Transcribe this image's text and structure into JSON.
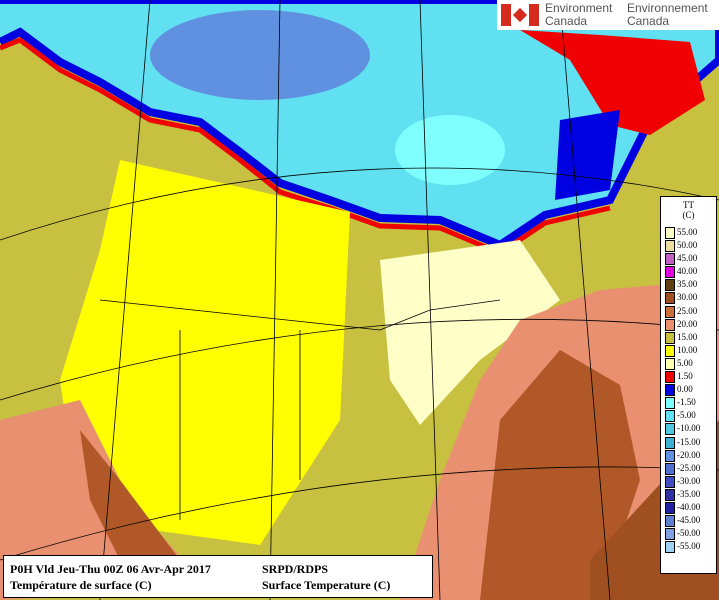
{
  "header": {
    "org_en_1": "Environment",
    "org_en_2": "Canada",
    "org_fr_1": "Environnement",
    "org_fr_2": "Canada"
  },
  "legend": {
    "title": "TT",
    "unit": "(C)",
    "items": [
      {
        "label": "55.00",
        "color": "#ffffc8"
      },
      {
        "label": "50.00",
        "color": "#f0e0a0"
      },
      {
        "label": "45.00",
        "color": "#c060c0"
      },
      {
        "label": "40.00",
        "color": "#e000e0"
      },
      {
        "label": "35.00",
        "color": "#604010"
      },
      {
        "label": "30.00",
        "color": "#a05020"
      },
      {
        "label": "25.00",
        "color": "#c87038"
      },
      {
        "label": "20.00",
        "color": "#e89070"
      },
      {
        "label": "15.00",
        "color": "#c8c040"
      },
      {
        "label": "10.00",
        "color": "#ffff00"
      },
      {
        "label": "5.00",
        "color": "#ffffb0"
      },
      {
        "label": "1.50",
        "color": "#f00000"
      },
      {
        "label": "0.00",
        "color": "#0000e0"
      },
      {
        "label": "-1.50",
        "color": "#80ffff"
      },
      {
        "label": "-5.00",
        "color": "#60e0f0"
      },
      {
        "label": "-10.00",
        "color": "#50c8e0"
      },
      {
        "label": "-15.00",
        "color": "#40b0d0"
      },
      {
        "label": "-20.00",
        "color": "#6090e0"
      },
      {
        "label": "-25.00",
        "color": "#5070d0"
      },
      {
        "label": "-30.00",
        "color": "#4050c0"
      },
      {
        "label": "-35.00",
        "color": "#3030a0"
      },
      {
        "label": "-40.00",
        "color": "#2020a0"
      },
      {
        "label": "-45.00",
        "color": "#6080d0"
      },
      {
        "label": "-50.00",
        "color": "#80a0e0"
      },
      {
        "label": "-55.00",
        "color": "#a0d0f0"
      }
    ]
  },
  "caption": {
    "line1_left": "P0H Vld Jeu-Thu 00Z 06 Avr-Apr 2017",
    "line1_right": "SRPD/RDPS",
    "line2_left": "Température de surface (C)",
    "line2_right": "Surface Temperature (C)"
  }
}
